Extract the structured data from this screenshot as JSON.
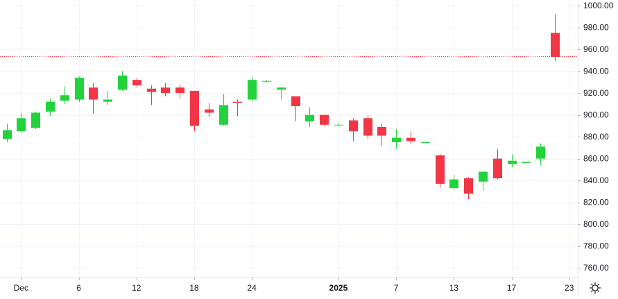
{
  "chart_data": {
    "type": "candlestick",
    "ylim": [
      748,
      1004
    ],
    "y_ticks": [
      760,
      780,
      800,
      820,
      840,
      860,
      880,
      900,
      920,
      940,
      960,
      980,
      1000
    ],
    "y_tick_labels": [
      "760.00",
      "780.00",
      "800.00",
      "820.00",
      "840.00",
      "860.00",
      "880.00",
      "900.00",
      "920.00",
      "940.00",
      "960.00",
      "980.00",
      "1000.00"
    ],
    "x_tick_labels": [
      {
        "label": "Dec",
        "index": 1
      },
      {
        "label": "6",
        "index": 5
      },
      {
        "label": "12",
        "index": 9
      },
      {
        "label": "18",
        "index": 13
      },
      {
        "label": "24",
        "index": 17
      },
      {
        "label": "2025",
        "index": 23
      },
      {
        "label": "7",
        "index": 27
      },
      {
        "label": "13",
        "index": 31
      },
      {
        "label": "17",
        "index": 35
      },
      {
        "label": "23",
        "index": 39
      }
    ],
    "price_line": 953.5,
    "candles": [
      {
        "o": 878,
        "h": 892,
        "c": 886,
        "l": 875
      },
      {
        "o": 885,
        "h": 902,
        "c": 897,
        "l": 884
      },
      {
        "o": 888,
        "h": 903,
        "c": 902,
        "l": 887
      },
      {
        "o": 903,
        "h": 915,
        "c": 912,
        "l": 899
      },
      {
        "o": 913,
        "h": 926,
        "c": 918,
        "l": 910
      },
      {
        "o": 914,
        "h": 935,
        "c": 934,
        "l": 912
      },
      {
        "o": 925,
        "h": 929,
        "c": 914,
        "l": 901
      },
      {
        "o": 912,
        "h": 922,
        "c": 914,
        "l": 909
      },
      {
        "o": 923,
        "h": 940,
        "c": 936,
        "l": 922
      },
      {
        "o": 932,
        "h": 934,
        "c": 927,
        "l": 925
      },
      {
        "o": 924,
        "h": 927,
        "c": 921,
        "l": 909
      },
      {
        "o": 925,
        "h": 929,
        "c": 920,
        "l": 917
      },
      {
        "o": 925,
        "h": 928,
        "c": 920,
        "l": 915
      },
      {
        "o": 922,
        "h": 922,
        "c": 890,
        "l": 885
      },
      {
        "o": 905,
        "h": 911,
        "c": 902,
        "l": 898
      },
      {
        "o": 891,
        "h": 919,
        "c": 909,
        "l": 890
      },
      {
        "o": 912,
        "h": 914,
        "c": 911,
        "l": 899
      },
      {
        "o": 914,
        "h": 935,
        "c": 932,
        "l": 912
      },
      {
        "o": 931,
        "h": 932,
        "c": 931,
        "l": 930
      },
      {
        "o": 923,
        "h": 925,
        "c": 925,
        "l": 914
      },
      {
        "o": 917,
        "h": 917,
        "c": 908,
        "l": 894
      },
      {
        "o": 894,
        "h": 907,
        "c": 900,
        "l": 889
      },
      {
        "o": 900,
        "h": 900,
        "c": 891,
        "l": 890
      },
      {
        "o": 891,
        "h": 892,
        "c": 891,
        "l": 890
      },
      {
        "o": 895,
        "h": 897,
        "c": 885,
        "l": 876
      },
      {
        "o": 897,
        "h": 899,
        "c": 881,
        "l": 878
      },
      {
        "o": 889,
        "h": 892,
        "c": 881,
        "l": 872
      },
      {
        "o": 875,
        "h": 887,
        "c": 879,
        "l": 869
      },
      {
        "o": 879,
        "h": 885,
        "c": 876,
        "l": 873
      },
      {
        "o": 875,
        "h": 875,
        "c": 875,
        "l": 875
      },
      {
        "o": 863,
        "h": 864,
        "c": 837,
        "l": 833
      },
      {
        "o": 833,
        "h": 845,
        "c": 841,
        "l": 831
      },
      {
        "o": 842,
        "h": 843,
        "c": 828,
        "l": 823
      },
      {
        "o": 839,
        "h": 849,
        "c": 848,
        "l": 830
      },
      {
        "o": 860,
        "h": 869,
        "c": 842,
        "l": 841
      },
      {
        "o": 855,
        "h": 864,
        "c": 858,
        "l": 852
      },
      {
        "o": 856,
        "h": 857,
        "c": 857,
        "l": 856
      },
      {
        "o": 860,
        "h": 874,
        "c": 871,
        "l": 854
      },
      {
        "o": 975,
        "h": 992,
        "c": 953,
        "l": 949
      }
    ],
    "colors": {
      "up": "#22d33b",
      "down": "#f23645",
      "grid": "#f0f3fa",
      "text": "#131722",
      "price_line": "#f23645"
    }
  },
  "ui": {
    "settings_icon": "gear-icon"
  }
}
